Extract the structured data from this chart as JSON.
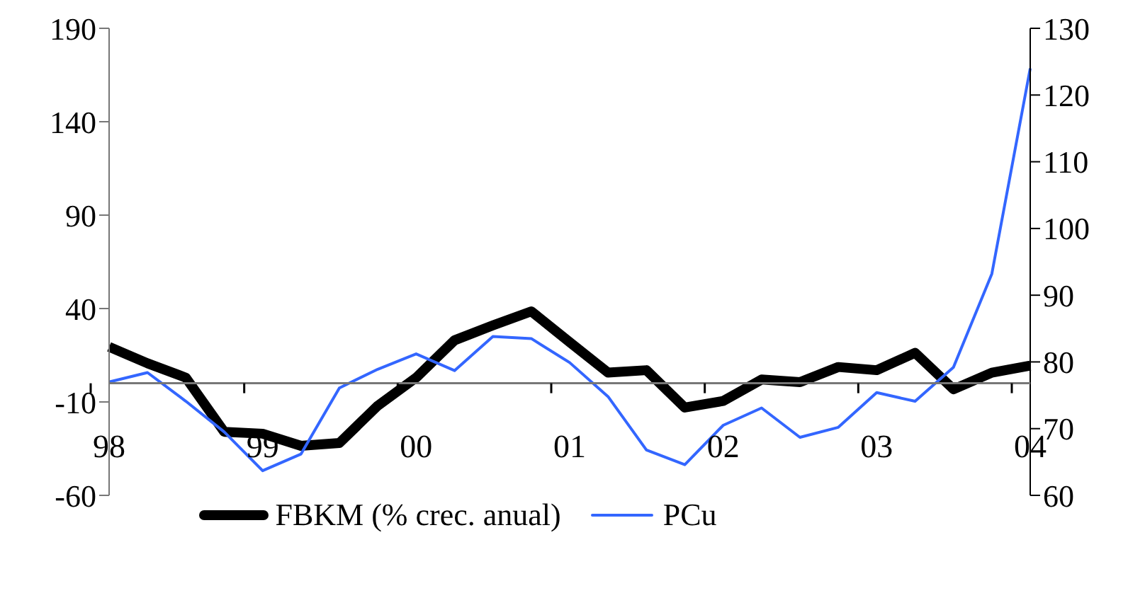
{
  "chart_data": {
    "type": "line",
    "categories": [
      "98",
      null,
      null,
      null,
      "99",
      null,
      null,
      null,
      "00",
      null,
      null,
      null,
      "01",
      null,
      null,
      null,
      "02",
      null,
      null,
      null,
      "03",
      null,
      null,
      null,
      "04"
    ],
    "series": [
      {
        "name": "FBKM (% crec. anual)",
        "color": "#000000",
        "values": [
          19.5,
          10.7,
          3,
          -26,
          -27,
          -33.5,
          -32,
          -12,
          3,
          23,
          31,
          38.5,
          22,
          5.7,
          7,
          -13,
          -9.5,
          2,
          0.6,
          8.7,
          7,
          16.3,
          -3.2,
          5.7,
          9.5
        ]
      },
      {
        "name": "PCu",
        "color": "#3366ff",
        "axis": "y2",
        "values": [
          77.0,
          78.4,
          74.1,
          69.5,
          63.7,
          66.2,
          76.1,
          78.9,
          81.2,
          78.7,
          83.8,
          83.5,
          79.9,
          74.8,
          66.8,
          64.6,
          70.5,
          73.1,
          68.7,
          70.2,
          75.4,
          74.1,
          79.2,
          93.2,
          124.0
        ]
      }
    ],
    "ylim": [
      -60,
      190
    ],
    "yticks": [
      -60,
      -10,
      40,
      90,
      140,
      190
    ],
    "y2lim": [
      60,
      130
    ],
    "y2ticks": [
      60,
      70,
      80,
      90,
      100,
      110,
      120,
      130
    ],
    "grid": false,
    "legend": "bottom",
    "marker": "none",
    "line_style": "solid"
  }
}
